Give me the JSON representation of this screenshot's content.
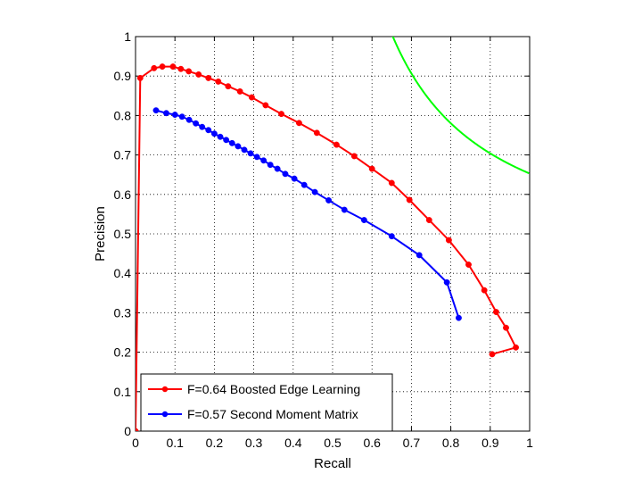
{
  "chart_data": {
    "type": "line",
    "title": "",
    "xlabel": "Recall",
    "ylabel": "Precision",
    "xlim": [
      0,
      1
    ],
    "ylim": [
      0,
      1
    ],
    "grid": true,
    "legend_position": "bottom-left",
    "x_ticks": [
      "0",
      "0.1",
      "0.2",
      "0.3",
      "0.4",
      "0.5",
      "0.6",
      "0.7",
      "0.8",
      "0.9",
      "1"
    ],
    "y_ticks": [
      "0",
      "0.1",
      "0.2",
      "0.3",
      "0.4",
      "0.5",
      "0.6",
      "0.7",
      "0.8",
      "0.9",
      "1"
    ],
    "series": [
      {
        "name": "F=0.64 Boosted Edge Learning",
        "color": "#ff0000",
        "marker": "dot",
        "points": [
          [
            0.0,
            0.0
          ],
          [
            0.012,
            0.895
          ],
          [
            0.047,
            0.92
          ],
          [
            0.068,
            0.924
          ],
          [
            0.095,
            0.924
          ],
          [
            0.115,
            0.918
          ],
          [
            0.135,
            0.912
          ],
          [
            0.16,
            0.904
          ],
          [
            0.185,
            0.895
          ],
          [
            0.21,
            0.886
          ],
          [
            0.235,
            0.874
          ],
          [
            0.265,
            0.861
          ],
          [
            0.295,
            0.846
          ],
          [
            0.33,
            0.826
          ],
          [
            0.37,
            0.804
          ],
          [
            0.415,
            0.781
          ],
          [
            0.46,
            0.756
          ],
          [
            0.51,
            0.726
          ],
          [
            0.555,
            0.697
          ],
          [
            0.6,
            0.665
          ],
          [
            0.65,
            0.629
          ],
          [
            0.695,
            0.586
          ],
          [
            0.745,
            0.535
          ],
          [
            0.795,
            0.484
          ],
          [
            0.845,
            0.422
          ],
          [
            0.885,
            0.357
          ],
          [
            0.915,
            0.302
          ],
          [
            0.94,
            0.262
          ],
          [
            0.965,
            0.212
          ],
          [
            0.905,
            0.195
          ]
        ]
      },
      {
        "name": "F=0.57 Second Moment Matrix",
        "color": "#0000ff",
        "marker": "dot",
        "points": [
          [
            0.052,
            0.813
          ],
          [
            0.078,
            0.806
          ],
          [
            0.1,
            0.802
          ],
          [
            0.118,
            0.797
          ],
          [
            0.136,
            0.789
          ],
          [
            0.153,
            0.78
          ],
          [
            0.169,
            0.771
          ],
          [
            0.185,
            0.763
          ],
          [
            0.2,
            0.754
          ],
          [
            0.215,
            0.746
          ],
          [
            0.23,
            0.738
          ],
          [
            0.245,
            0.73
          ],
          [
            0.26,
            0.722
          ],
          [
            0.276,
            0.713
          ],
          [
            0.292,
            0.704
          ],
          [
            0.308,
            0.695
          ],
          [
            0.325,
            0.686
          ],
          [
            0.342,
            0.675
          ],
          [
            0.36,
            0.665
          ],
          [
            0.38,
            0.652
          ],
          [
            0.403,
            0.64
          ],
          [
            0.428,
            0.624
          ],
          [
            0.455,
            0.606
          ],
          [
            0.49,
            0.585
          ],
          [
            0.53,
            0.561
          ],
          [
            0.58,
            0.535
          ],
          [
            0.65,
            0.494
          ],
          [
            0.72,
            0.446
          ],
          [
            0.79,
            0.377
          ],
          [
            0.82,
            0.287
          ]
        ]
      },
      {
        "name": "",
        "color": "#00ff00",
        "marker": "none",
        "curve": "iso-F",
        "f_value": 0.79
      }
    ]
  }
}
